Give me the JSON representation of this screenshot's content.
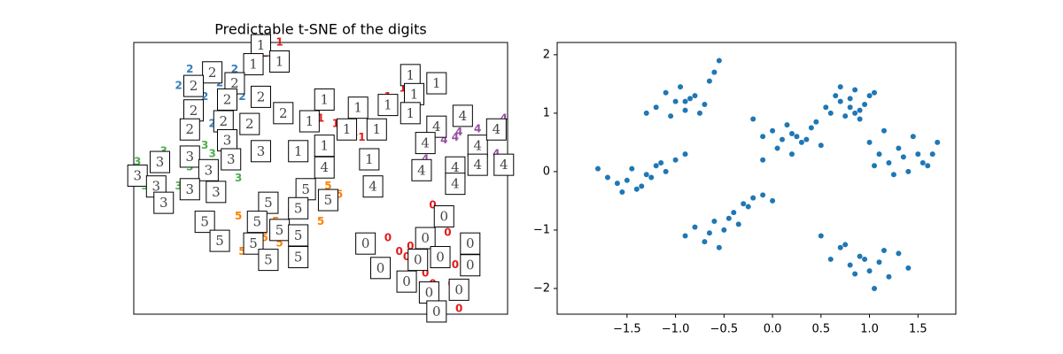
{
  "chart_data": [
    {
      "type": "digit-map",
      "title": "Predictable t-SNE of the digits",
      "xlim": [
        0,
        100
      ],
      "ylim": [
        0,
        100
      ],
      "series": [
        {
          "name": "0",
          "color": "#e41a1c",
          "x": [
            80,
            68,
            74,
            84,
            76,
            83,
            86,
            80,
            87,
            71,
            78,
            85,
            73
          ],
          "y": [
            40,
            28,
            25,
            30,
            18,
            21,
            18,
            11,
            2,
            23,
            15,
            11,
            21
          ]
        },
        {
          "name": "1",
          "color": "#e41a1c",
          "x": [
            39,
            35,
            68,
            72,
            54,
            59,
            61,
            66,
            73,
            76,
            50
          ],
          "y": [
            100,
            96,
            80,
            83,
            70,
            67,
            65,
            67,
            80,
            81,
            72
          ]
        },
        {
          "name": "2",
          "color": "#377eb8",
          "x": [
            12,
            15,
            19,
            23,
            27,
            29,
            21,
            18,
            25
          ],
          "y": [
            84,
            90,
            80,
            85,
            90,
            80,
            70,
            73,
            75
          ]
        },
        {
          "name": "3",
          "color": "#4daf4a",
          "x": [
            1,
            8,
            12,
            19,
            26,
            28,
            15,
            21,
            3
          ],
          "y": [
            56,
            60,
            47,
            62,
            54,
            50,
            54,
            59,
            47
          ]
        },
        {
          "name": "4",
          "color": "#984ea3",
          "x": [
            83,
            87,
            92,
            97,
            99,
            85,
            78,
            91,
            86
          ],
          "y": [
            64,
            67,
            68,
            59,
            72,
            54,
            57,
            57,
            65
          ]
        },
        {
          "name": "5",
          "color": "#ff7f00",
          "x": [
            28,
            38,
            42,
            35,
            31,
            46,
            52,
            55,
            50,
            29,
            39
          ],
          "y": [
            36,
            34,
            37,
            28,
            24,
            42,
            47,
            44,
            34,
            23,
            26
          ]
        }
      ],
      "images": [
        {
          "digit": "0",
          "x": [
            83,
            62,
            78,
            90,
            66,
            76,
            82,
            90,
            73,
            79,
            87,
            81
          ],
          "y": [
            36,
            26,
            28,
            26,
            17,
            20,
            21,
            18,
            12,
            8,
            9,
            1
          ]
        },
        {
          "digit": "1",
          "x": [
            34,
            32,
            39,
            74,
            81,
            75,
            51,
            60,
            68,
            74,
            47,
            57,
            65,
            51,
            44,
            63
          ],
          "y": [
            99,
            92,
            93,
            88,
            85,
            81,
            79,
            76,
            77,
            74,
            71,
            68,
            68,
            62,
            60,
            57
          ]
        },
        {
          "digit": "2",
          "x": [
            21,
            27,
            16,
            34,
            25,
            16,
            24,
            31,
            40,
            15
          ],
          "y": [
            89,
            85,
            84,
            80,
            79,
            75,
            71,
            70,
            74,
            68
          ]
        },
        {
          "digit": "3",
          "x": [
            1,
            7,
            15,
            25,
            20,
            26,
            34,
            6,
            15,
            22,
            8
          ],
          "y": [
            51,
            56,
            58,
            64,
            53,
            57,
            60,
            47,
            46,
            45,
            41
          ]
        },
        {
          "digit": "4",
          "x": [
            81,
            88,
            78,
            92,
            97,
            51,
            77,
            86,
            92,
            99,
            86,
            64
          ],
          "y": [
            69,
            73,
            63,
            62,
            68,
            54,
            53,
            54,
            55,
            55,
            48,
            47
          ]
        },
        {
          "digit": "5",
          "x": [
            46,
            52,
            36,
            44,
            19,
            33,
            39,
            44,
            23,
            32,
            36,
            44
          ],
          "y": [
            46,
            42,
            41,
            39,
            34,
            34,
            31,
            29,
            27,
            26,
            20,
            21
          ]
        }
      ]
    },
    {
      "type": "scatter",
      "color": "#1f77b4",
      "xlim": [
        -2.22,
        1.89
      ],
      "ylim": [
        -2.44,
        2.21
      ],
      "xticks": [
        {
          "value": -1.5,
          "label": "−1.5"
        },
        {
          "value": -1,
          "label": "−1.0"
        },
        {
          "value": -0.5,
          "label": "−0.5"
        },
        {
          "value": 0,
          "label": "0.0"
        },
        0.5,
        {
          "value": 1,
          "label": "1.0"
        },
        1.5
      ],
      "yticks": [
        {
          "value": -2,
          "label": "−2"
        },
        {
          "value": -1,
          "label": "−1"
        },
        0,
        1,
        2
      ],
      "x": [
        -1.2,
        -1.1,
        -1.0,
        -0.9,
        -0.8,
        -0.7,
        -0.6,
        -1.05,
        -0.95,
        -0.85,
        -0.75,
        -0.65,
        -0.55,
        -0.9,
        -1.3,
        -1.8,
        -1.7,
        -1.6,
        -1.5,
        -1.4,
        -1.3,
        -1.2,
        -1.1,
        -1.0,
        -0.9,
        -1.45,
        -1.35,
        -1.25,
        -1.55,
        -1.15,
        -0.9,
        -0.8,
        -0.7,
        -0.6,
        -0.5,
        -0.4,
        -0.3,
        -0.2,
        -0.1,
        0.0,
        -0.65,
        -0.45,
        -0.35,
        -0.25,
        -0.55,
        -0.2,
        -0.1,
        0.0,
        0.1,
        0.2,
        0.3,
        0.4,
        0.5,
        0.15,
        0.25,
        0.35,
        0.05,
        0.45,
        0.2,
        -0.1,
        0.6,
        0.7,
        0.8,
        0.9,
        1.0,
        0.75,
        0.85,
        0.95,
        0.65,
        0.55,
        1.05,
        0.8,
        0.9,
        0.7,
        0.85,
        1.0,
        1.1,
        1.2,
        1.3,
        1.4,
        1.5,
        1.6,
        1.7,
        1.15,
        1.25,
        1.35,
        1.45,
        1.55,
        1.65,
        1.05,
        0.5,
        0.6,
        0.7,
        0.8,
        0.9,
        1.0,
        1.1,
        1.2,
        1.3,
        1.4,
        0.95,
        1.05,
        0.85,
        1.15,
        0.75
      ],
      "y": [
        1.1,
        1.35,
        1.2,
        1.05,
        1.3,
        1.15,
        1.7,
        0.95,
        1.45,
        1.25,
        1.0,
        1.55,
        1.9,
        1.2,
        1.0,
        0.05,
        -0.1,
        -0.2,
        -0.15,
        -0.3,
        -0.05,
        0.1,
        0.0,
        0.2,
        0.3,
        0.05,
        -0.25,
        -0.1,
        -0.35,
        0.15,
        -1.1,
        -0.95,
        -1.2,
        -0.85,
        -1.0,
        -0.7,
        -0.55,
        -0.45,
        -0.4,
        -0.5,
        -1.05,
        -0.8,
        -0.9,
        -0.6,
        -1.3,
        0.9,
        0.6,
        0.7,
        0.55,
        0.65,
        0.5,
        0.75,
        0.45,
        0.8,
        0.6,
        0.55,
        0.4,
        0.85,
        0.3,
        0.2,
        1.0,
        1.2,
        1.1,
        1.05,
        1.3,
        0.95,
        1.4,
        1.15,
        1.3,
        1.1,
        1.35,
        1.25,
        0.9,
        1.45,
        1.0,
        0.5,
        0.3,
        0.15,
        0.4,
        0.0,
        0.3,
        0.1,
        0.5,
        0.7,
        -0.05,
        0.25,
        0.6,
        0.15,
        0.3,
        0.1,
        -1.1,
        -1.5,
        -1.3,
        -1.6,
        -1.45,
        -1.7,
        -1.55,
        -1.8,
        -1.4,
        -1.65,
        -1.5,
        -2.0,
        -1.75,
        -1.35,
        -1.25
      ]
    }
  ]
}
